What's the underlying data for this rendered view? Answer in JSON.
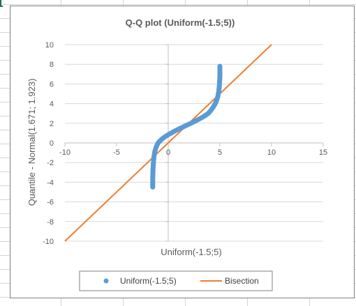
{
  "chart_data": {
    "type": "scatter",
    "title": "Q-Q plot (Uniform(-1.5;5))",
    "xlabel": "Uniform(-1.5;5)",
    "ylabel": "Quantile - Normal(1.671; 1.923)",
    "xlim": [
      -10,
      15
    ],
    "ylim": [
      -10,
      10
    ],
    "x_ticks": [
      "-10",
      "-5",
      "0",
      "5",
      "10",
      "15"
    ],
    "y_ticks": [
      "10",
      "8",
      "6",
      "4",
      "2",
      "0",
      "-2",
      "-4",
      "-6",
      "-8",
      "-10"
    ],
    "grid": "horizontal",
    "legend_position": "bottom",
    "series": [
      {
        "name": "Uniform(-1.5;5)",
        "kind": "markers",
        "color": "#5b9bd5",
        "points": [
          [
            -1.5,
            -4.5
          ],
          [
            -1.5,
            -4.2
          ],
          [
            -1.5,
            -3.9
          ],
          [
            -1.5,
            -3.6
          ],
          [
            -1.49,
            -3.3
          ],
          [
            -1.48,
            -3.0
          ],
          [
            -1.47,
            -2.7
          ],
          [
            -1.46,
            -2.4
          ],
          [
            -1.44,
            -2.1
          ],
          [
            -1.42,
            -1.8
          ],
          [
            -1.39,
            -1.5
          ],
          [
            -1.35,
            -1.2
          ],
          [
            -1.3,
            -0.9
          ],
          [
            -1.22,
            -0.6
          ],
          [
            -1.12,
            -0.3
          ],
          [
            -0.98,
            0.0
          ],
          [
            -0.8,
            0.2
          ],
          [
            -0.6,
            0.4
          ],
          [
            -0.35,
            0.6
          ],
          [
            -0.05,
            0.8
          ],
          [
            0.28,
            1.0
          ],
          [
            0.63,
            1.2
          ],
          [
            1.0,
            1.4
          ],
          [
            1.4,
            1.6
          ],
          [
            1.8,
            1.8
          ],
          [
            2.2,
            2.0
          ],
          [
            2.58,
            2.2
          ],
          [
            2.95,
            2.4
          ],
          [
            3.3,
            2.6
          ],
          [
            3.6,
            2.8
          ],
          [
            3.88,
            3.0
          ],
          [
            4.12,
            3.3
          ],
          [
            4.33,
            3.6
          ],
          [
            4.5,
            3.9
          ],
          [
            4.64,
            4.2
          ],
          [
            4.74,
            4.5
          ],
          [
            4.82,
            4.8
          ],
          [
            4.87,
            5.1
          ],
          [
            4.91,
            5.4
          ],
          [
            4.94,
            5.7
          ],
          [
            4.96,
            6.0
          ],
          [
            4.98,
            6.3
          ],
          [
            4.99,
            6.6
          ],
          [
            5.0,
            6.9
          ],
          [
            5.0,
            7.2
          ],
          [
            5.0,
            7.5
          ],
          [
            5.0,
            7.8
          ]
        ]
      },
      {
        "name": "Bisection",
        "kind": "line",
        "color": "#ed7d31",
        "points": [
          [
            -10,
            -10
          ],
          [
            10,
            10
          ]
        ]
      }
    ]
  },
  "colors": {
    "frame": "#7f7f7f",
    "grid": "#d9d9d9",
    "axis": "#bfbfbf",
    "text": "#595959",
    "spreadsheet_grid": "#d4d4d4",
    "cell_marker": "#217346"
  }
}
